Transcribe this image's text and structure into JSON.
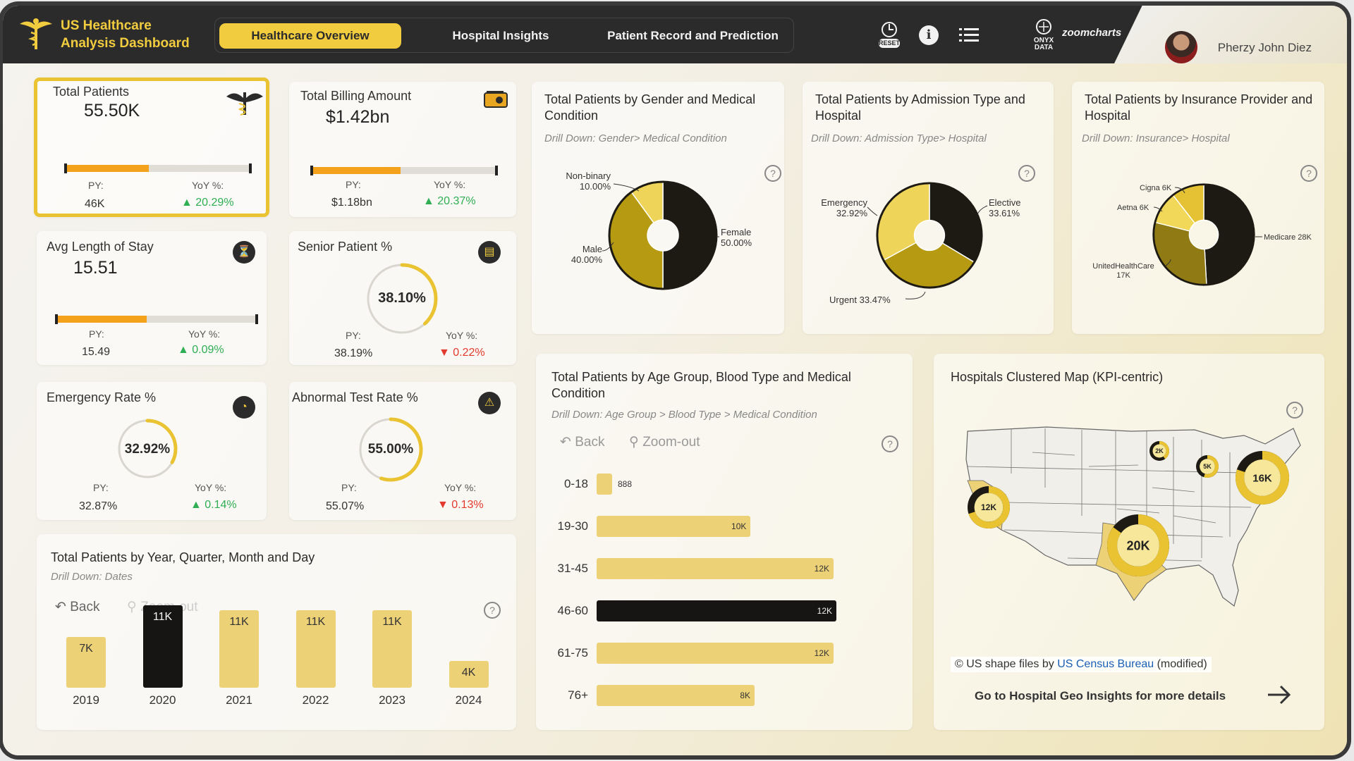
{
  "app": {
    "title_line1": "US Healthcare",
    "title_line2": "Analysis Dashboard",
    "user": "Pherzy John Diez",
    "reset_label": "RESET",
    "brand1": "ONYX DATA",
    "brand2": "zoomcharts"
  },
  "tabs": [
    "Healthcare Overview",
    "Hospital Insights",
    "Patient Record and Prediction"
  ],
  "kpis": {
    "total_patients": {
      "title": "Total Patients",
      "value": "55.50K",
      "py_label": "PY:",
      "py": "46K",
      "yoy_label": "YoY %:",
      "yoy": "▲ 20.29%",
      "progress": 0.45
    },
    "billing": {
      "title": "Total Billing Amount",
      "value": "$1.42bn",
      "py_label": "PY:",
      "py": "$1.18bn",
      "yoy_label": "YoY %:",
      "yoy": "▲ 20.37%",
      "progress": 0.48
    },
    "stay": {
      "title": "Avg Length of Stay",
      "value": "15.51",
      "py_label": "PY:",
      "py": "15.49",
      "yoy_label": "YoY %:",
      "yoy": "▲ 0.09%",
      "progress": 0.45
    },
    "senior": {
      "title": "Senior Patient %",
      "value": "38.10%",
      "py_label": "PY:",
      "py": "38.19%",
      "yoy_label": "YoY %:",
      "yoy": "▼ 0.22%",
      "ratio": 0.381
    },
    "emergency": {
      "title": "Emergency Rate %",
      "value": "32.92%",
      "py_label": "PY:",
      "py": "32.87%",
      "yoy_label": "YoY %:",
      "yoy": "▲ 0.14%",
      "ratio": 0.3292
    },
    "abnormal": {
      "title": "Abnormal Test Rate %",
      "value": "55.00%",
      "py_label": "PY:",
      "py": "55.07%",
      "yoy_label": "YoY %:",
      "yoy": "▼ 0.13%",
      "ratio": 0.55
    }
  },
  "gender": {
    "title": "Total Patients by Gender and Medical Condition",
    "drill": "Drill Down: Gender>  Medical Condition",
    "labels": {
      "nb": "Non-binary",
      "nb_v": "10.00%",
      "male": "Male",
      "male_v": "40.00%",
      "female": "Female",
      "female_v": "50.00%"
    }
  },
  "admission": {
    "title": "Total Patients by Admission Type and Hospital",
    "drill": "Drill Down: Admission Type> Hospital",
    "labels": {
      "em": "Emergency",
      "em_v": "32.92%",
      "el": "Elective",
      "el_v": "33.61%",
      "ur": "Urgent 33.47%"
    }
  },
  "insurance": {
    "title": "Total Patients by Insurance Provider and Hospital",
    "drill": "Drill Down: Insurance> Hospital",
    "labels": {
      "cigna": "Cigna 6K",
      "aetna": "Aetna 6K",
      "uhc": "UnitedHealthCare",
      "uhc_v": "17K",
      "medicare": "Medicare 28K"
    }
  },
  "age": {
    "title": "Total Patients by Age Group, Blood Type and Medical Condition",
    "drill": "Drill Down: Age Group > Blood Type > Medical Condition",
    "back": "Back",
    "zoom": "Zoom-out"
  },
  "year": {
    "title": "Total Patients by Year, Quarter, Month and Day",
    "drill": "Drill Down: Dates",
    "back": "Back",
    "zoom": "Zoom-out"
  },
  "map": {
    "title": "Hospitals Clustered Map (KPI-centric)",
    "note_pre": "© US shape files by ",
    "note_link": "US Census Bureau",
    "note_post": " (modified)",
    "goto": "Go to Hospital Geo Insights for more details",
    "clusters": [
      "2K",
      "5K",
      "16K",
      "12K",
      "20K"
    ]
  },
  "chart_data": [
    {
      "type": "pie",
      "title": "Total Patients by Gender and Medical Condition",
      "categories": [
        "Female",
        "Male",
        "Non-binary"
      ],
      "values": [
        50.0,
        40.0,
        10.0
      ]
    },
    {
      "type": "pie",
      "title": "Total Patients by Admission Type and Hospital",
      "categories": [
        "Elective",
        "Urgent",
        "Emergency"
      ],
      "values": [
        33.61,
        33.47,
        32.92
      ]
    },
    {
      "type": "pie",
      "title": "Total Patients by Insurance Provider and Hospital",
      "categories": [
        "Medicare",
        "UnitedHealthCare",
        "Aetna",
        "Cigna"
      ],
      "values": [
        28,
        17,
        6,
        6
      ],
      "unit": "K"
    },
    {
      "type": "bar",
      "title": "Total Patients by Age Group, Blood Type and Medical Condition",
      "orientation": "horizontal",
      "categories": [
        "0-18",
        "19-30",
        "31-45",
        "46-60",
        "61-75",
        "76+"
      ],
      "values": [
        888,
        10000,
        12000,
        12000,
        12000,
        8000
      ],
      "labels": [
        "888",
        "10K",
        "12K",
        "12K",
        "12K",
        "8K"
      ],
      "highlight": "46-60"
    },
    {
      "type": "bar",
      "title": "Total Patients by Year, Quarter, Month and Day",
      "categories": [
        "2019",
        "2020",
        "2021",
        "2022",
        "2023",
        "2024"
      ],
      "values": [
        7,
        11,
        11,
        11,
        11,
        4
      ],
      "labels": [
        "7K",
        "11K",
        "11K",
        "11K",
        "11K",
        "4K"
      ],
      "unit": "K",
      "highlight": "2020"
    }
  ]
}
